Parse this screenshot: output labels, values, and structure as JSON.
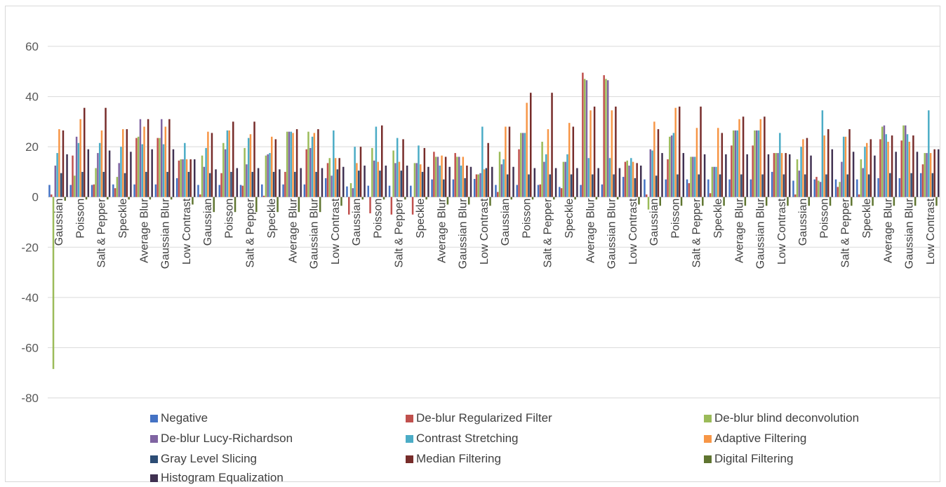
{
  "chart_data": {
    "type": "bar",
    "title": "",
    "xlabel": "",
    "ylabel": "",
    "ylim": [
      -80,
      70
    ],
    "yticks": [
      -80,
      -60,
      -40,
      -20,
      0,
      20,
      40,
      60
    ],
    "grid": true,
    "legend_position": "bottom",
    "categories": [
      "Gaussian",
      "Poisson",
      "Salt & Pepper",
      "Speckle",
      "Average Blur",
      "Gaussian Blur",
      "Low Contrast",
      "Gaussian",
      "Poisson",
      "Salt & Pepper",
      "Speckle",
      "Average Blur",
      "Gaussian Blur",
      "Low Contrast",
      "Gaussian",
      "Poisson",
      "Salt & Pepper",
      "Speckle",
      "Average Blur",
      "Gaussian Blur",
      "Low Contrast",
      "Gaussian",
      "Poisson",
      "Salt & Pepper",
      "Speckle",
      "Average Blur",
      "Gaussian Blur",
      "Low Contrast",
      "Gaussian",
      "Poisson",
      "Salt & Pepper",
      "Speckle",
      "Average Blur",
      "Gaussian Blur",
      "Low Contrast",
      "Gaussian",
      "Poisson",
      "Salt & Pepper",
      "Speckle",
      "Average Blur",
      "Gaussian Blur",
      "Low Contrast"
    ],
    "series": [
      {
        "name": "Negative",
        "color": "#4472c4",
        "values": [
          4.8,
          4.8,
          4.8,
          5.0,
          5.0,
          5.0,
          7.5,
          4.8,
          4.8,
          4.8,
          5.0,
          5.0,
          5.0,
          7.5,
          4.2,
          4.5,
          4.5,
          4.5,
          7.0,
          7.0,
          7.2,
          4.8,
          4.8,
          4.8,
          4.0,
          4.8,
          5.0,
          8.0,
          7.0,
          7.0,
          7.0,
          7.0,
          7.0,
          7.0,
          10.0,
          6.5,
          7.0,
          7.0,
          7.0,
          7.5,
          7.5,
          9.5
        ]
      },
      {
        "name": "De-blur Regularized Filter",
        "color": "#c0504d",
        "values": [
          1.0,
          16.5,
          5.0,
          3.5,
          23.5,
          23.5,
          14.5,
          1.0,
          9.5,
          4.5,
          0.5,
          10.0,
          19.0,
          13.5,
          -7.0,
          -6.5,
          -7.0,
          -7.0,
          18.0,
          17.5,
          9.0,
          2.0,
          19.0,
          5.0,
          3.5,
          49.5,
          48.5,
          14.0,
          1.0,
          15.0,
          5.5,
          1.5,
          20.5,
          20.5,
          17.5,
          1.0,
          8.0,
          4.0,
          1.0,
          23.0,
          22.5,
          13.0
        ]
      },
      {
        "name": "De-blur blind deconvolution",
        "color": "#9bbb59",
        "values": [
          -68.5,
          8.5,
          11.5,
          8.0,
          24.0,
          23.5,
          15.0,
          16.5,
          21.5,
          19.5,
          16.5,
          26.0,
          26.0,
          15.5,
          5.5,
          19.5,
          18.5,
          13.5,
          16.0,
          16.0,
          9.0,
          18.0,
          25.5,
          22.0,
          14.0,
          47.0,
          47.0,
          14.5,
          -5.0,
          24.0,
          16.0,
          12.0,
          26.5,
          26.5,
          17.5,
          15.0,
          6.5,
          6.0,
          15.0,
          28.0,
          28.5,
          17.5
        ]
      },
      {
        "name": "De-blur Lucy-Richardson",
        "color": "#8064a2",
        "values": [
          12.5,
          24.0,
          17.5,
          13.5,
          31.0,
          31.0,
          15.0,
          12.0,
          19.0,
          13.0,
          17.0,
          26.0,
          19.5,
          8.5,
          3.5,
          14.5,
          13.5,
          13.5,
          16.0,
          16.0,
          9.5,
          13.0,
          25.5,
          14.0,
          14.0,
          46.5,
          46.5,
          12.5,
          19.0,
          24.5,
          16.0,
          12.0,
          26.5,
          26.5,
          17.5,
          10.5,
          6.0,
          14.0,
          11.5,
          28.5,
          28.5,
          17.5
        ]
      },
      {
        "name": "Contrast Stretching",
        "color": "#4bacc6",
        "values": [
          17.5,
          21.5,
          21.5,
          20.0,
          21.0,
          21.0,
          21.5,
          19.5,
          26.5,
          23.5,
          17.5,
          26.0,
          24.0,
          26.5,
          20.0,
          28.0,
          23.5,
          20.5,
          12.5,
          12.5,
          28.0,
          15.0,
          25.5,
          17.0,
          17.0,
          15.5,
          15.5,
          15.5,
          18.5,
          25.5,
          16.0,
          12.0,
          26.5,
          26.5,
          25.5,
          20.0,
          34.5,
          24.0,
          20.0,
          25.0,
          25.0,
          34.5
        ]
      },
      {
        "name": "Adaptive Filtering",
        "color": "#f79646",
        "values": [
          27.0,
          31.0,
          26.5,
          27.0,
          28.0,
          28.0,
          15.0,
          26.0,
          26.5,
          25.0,
          24.0,
          25.5,
          25.5,
          15.5,
          13.5,
          14.0,
          14.0,
          13.0,
          16.5,
          16.0,
          11.0,
          28.0,
          37.5,
          27.0,
          29.5,
          34.5,
          34.5,
          14.0,
          30.0,
          35.5,
          27.5,
          27.5,
          31.0,
          31.0,
          17.5,
          23.0,
          24.5,
          24.0,
          21.5,
          22.0,
          22.0,
          17.5
        ]
      },
      {
        "name": "Gray Level Slicing",
        "color": "#2c4d75",
        "values": [
          9.5,
          10.0,
          10.0,
          9.5,
          10.0,
          10.0,
          10.0,
          9.5,
          10.0,
          10.0,
          10.0,
          10.0,
          10.0,
          11.0,
          10.5,
          10.5,
          10.5,
          10.0,
          7.0,
          7.5,
          11.5,
          9.0,
          9.0,
          9.0,
          9.0,
          9.0,
          9.0,
          7.5,
          8.5,
          9.0,
          9.0,
          9.0,
          9.0,
          9.0,
          9.0,
          9.0,
          9.0,
          9.0,
          9.0,
          9.5,
          9.5,
          9.5
        ]
      },
      {
        "name": "Median Filtering",
        "color": "#772c2a",
        "values": [
          26.5,
          35.5,
          35.5,
          27.0,
          31.0,
          31.0,
          15.0,
          25.5,
          30.0,
          30.0,
          23.0,
          27.0,
          27.0,
          15.5,
          20.0,
          28.5,
          23.0,
          19.5,
          16.0,
          12.5,
          21.5,
          28.0,
          41.5,
          41.5,
          28.0,
          36.0,
          36.0,
          13.5,
          27.0,
          36.0,
          36.0,
          25.5,
          32.0,
          32.0,
          17.5,
          23.5,
          27.0,
          27.0,
          23.0,
          24.5,
          24.5,
          19.0
        ]
      },
      {
        "name": "Digital Filtering",
        "color": "#5f7530",
        "values": [
          -1.5,
          -1.0,
          -1.0,
          -1.0,
          -1.0,
          -1.0,
          -3.0,
          -6.0,
          -6.0,
          -6.0,
          -6.0,
          -6.0,
          -6.0,
          -3.5,
          -1.0,
          -1.0,
          -1.0,
          -1.0,
          -3.0,
          -3.0,
          -3.5,
          -1.0,
          -1.0,
          -1.0,
          -1.0,
          -1.0,
          -1.0,
          -3.0,
          -3.5,
          -3.5,
          -3.5,
          -3.5,
          -3.5,
          -3.5,
          -3.5,
          -3.5,
          -3.5,
          -3.5,
          -3.5,
          -3.5,
          -3.5,
          -3.5
        ]
      },
      {
        "name": "Histogram Equalization",
        "color": "#403151",
        "values": [
          17.0,
          19.0,
          18.5,
          18.0,
          19.0,
          19.0,
          15.0,
          11.0,
          11.5,
          11.5,
          11.0,
          11.5,
          11.5,
          12.0,
          12.5,
          12.5,
          12.5,
          12.0,
          12.0,
          12.0,
          12.0,
          12.0,
          11.5,
          11.5,
          11.5,
          11.5,
          11.5,
          12.5,
          17.5,
          17.5,
          17.0,
          17.0,
          17.0,
          17.0,
          17.0,
          16.5,
          19.0,
          18.0,
          16.5,
          18.0,
          18.0,
          19.0
        ]
      }
    ]
  }
}
